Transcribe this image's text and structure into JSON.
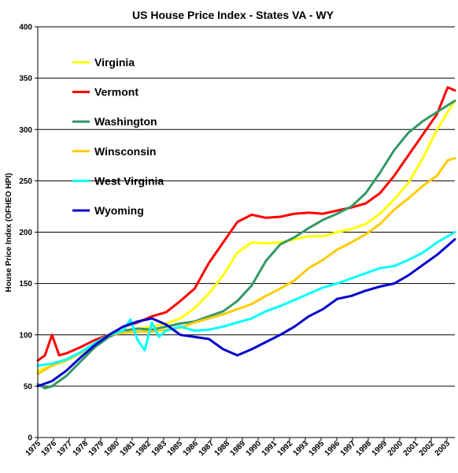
{
  "chart_data": {
    "type": "line",
    "title": "US House Price Index - States VA - WY",
    "ylabel": "House Price Index (OFHEO  HPI)",
    "xlabel": "",
    "ylim": [
      0,
      400
    ],
    "yticks": [
      0,
      50,
      100,
      150,
      200,
      250,
      300,
      350,
      400
    ],
    "xlim": [
      1975,
      2004.25
    ],
    "xtick_labels": [
      "1975",
      "1976",
      "1977",
      "1978",
      "1979",
      "1980",
      "1981",
      "1982",
      "1983",
      "1985",
      "1986",
      "1987",
      "1988",
      "1989",
      "1990",
      "1991",
      "1992",
      "1993",
      "1995",
      "1996",
      "1997",
      "1998",
      "1999",
      "2000",
      "2001",
      "2002",
      "2003"
    ],
    "grid": "horizontal",
    "legend_position": "top-left",
    "series": [
      {
        "name": "Virginia",
        "color": "#ffff00",
        "points": [
          [
            1975,
            65
          ],
          [
            1976,
            70
          ],
          [
            1977,
            75
          ],
          [
            1978,
            82
          ],
          [
            1979,
            92
          ],
          [
            1980,
            100
          ],
          [
            1981,
            104
          ],
          [
            1982,
            106
          ],
          [
            1983,
            108
          ],
          [
            1984,
            111
          ],
          [
            1985,
            116
          ],
          [
            1986,
            126
          ],
          [
            1987,
            140
          ],
          [
            1988,
            158
          ],
          [
            1989,
            180
          ],
          [
            1990,
            190
          ],
          [
            1991,
            189
          ],
          [
            1992,
            190
          ],
          [
            1993,
            193
          ],
          [
            1994,
            196
          ],
          [
            1995,
            196
          ],
          [
            1996,
            200
          ],
          [
            1997,
            203
          ],
          [
            1998,
            208
          ],
          [
            1999,
            218
          ],
          [
            2000,
            232
          ],
          [
            2001,
            248
          ],
          [
            2002,
            272
          ],
          [
            2003,
            300
          ],
          [
            2004.25,
            328
          ]
        ]
      },
      {
        "name": "Vermont",
        "color": "#ff0000",
        "points": [
          [
            1975,
            75
          ],
          [
            1975.5,
            80
          ],
          [
            1976,
            100
          ],
          [
            1976.5,
            80
          ],
          [
            1977,
            82
          ],
          [
            1978,
            88
          ],
          [
            1979,
            95
          ],
          [
            1980,
            100
          ],
          [
            1981,
            108
          ],
          [
            1982,
            112
          ],
          [
            1983,
            118
          ],
          [
            1984,
            122
          ],
          [
            1985,
            133
          ],
          [
            1986,
            145
          ],
          [
            1987,
            170
          ],
          [
            1988,
            190
          ],
          [
            1989,
            210
          ],
          [
            1990,
            217
          ],
          [
            1991,
            214
          ],
          [
            1992,
            215
          ],
          [
            1993,
            218
          ],
          [
            1994,
            219
          ],
          [
            1995,
            218
          ],
          [
            1996,
            221
          ],
          [
            1997,
            224
          ],
          [
            1998,
            228
          ],
          [
            1999,
            238
          ],
          [
            2000,
            255
          ],
          [
            2001,
            275
          ],
          [
            2002,
            295
          ],
          [
            2003,
            315
          ],
          [
            2003.75,
            341
          ],
          [
            2004.25,
            338
          ]
        ]
      },
      {
        "name": "Washington",
        "color": "#339966",
        "points": [
          [
            1975,
            52
          ],
          [
            1975.5,
            48
          ],
          [
            1976,
            50
          ],
          [
            1977,
            60
          ],
          [
            1978,
            74
          ],
          [
            1979,
            88
          ],
          [
            1980,
            98
          ],
          [
            1981,
            104
          ],
          [
            1982,
            106
          ],
          [
            1983,
            105
          ],
          [
            1984,
            108
          ],
          [
            1985,
            111
          ],
          [
            1986,
            113
          ],
          [
            1987,
            118
          ],
          [
            1988,
            123
          ],
          [
            1989,
            133
          ],
          [
            1990,
            148
          ],
          [
            1991,
            172
          ],
          [
            1992,
            188
          ],
          [
            1993,
            195
          ],
          [
            1994,
            204
          ],
          [
            1995,
            212
          ],
          [
            1996,
            218
          ],
          [
            1997,
            225
          ],
          [
            1998,
            238
          ],
          [
            1999,
            258
          ],
          [
            2000,
            280
          ],
          [
            2001,
            297
          ],
          [
            2002,
            308
          ],
          [
            2003,
            317
          ],
          [
            2004.25,
            328
          ]
        ]
      },
      {
        "name": "Winsconsin",
        "color": "#ffcc00",
        "points": [
          [
            1975,
            62
          ],
          [
            1976,
            70
          ],
          [
            1977,
            75
          ],
          [
            1978,
            82
          ],
          [
            1979,
            92
          ],
          [
            1980,
            100
          ],
          [
            1981,
            102
          ],
          [
            1982,
            103
          ],
          [
            1983,
            103
          ],
          [
            1984,
            105
          ],
          [
            1985,
            107
          ],
          [
            1986,
            112
          ],
          [
            1987,
            116
          ],
          [
            1988,
            120
          ],
          [
            1989,
            125
          ],
          [
            1990,
            130
          ],
          [
            1991,
            138
          ],
          [
            1992,
            145
          ],
          [
            1993,
            153
          ],
          [
            1994,
            165
          ],
          [
            1995,
            173
          ],
          [
            1996,
            183
          ],
          [
            1997,
            190
          ],
          [
            1998,
            198
          ],
          [
            1999,
            208
          ],
          [
            2000,
            222
          ],
          [
            2001,
            233
          ],
          [
            2002,
            245
          ],
          [
            2003,
            255
          ],
          [
            2003.75,
            270
          ],
          [
            2004.25,
            272
          ]
        ]
      },
      {
        "name": "West Virginia",
        "color": "#00ffff",
        "points": [
          [
            1975,
            70
          ],
          [
            1976,
            72
          ],
          [
            1977,
            76
          ],
          [
            1978,
            83
          ],
          [
            1979,
            92
          ],
          [
            1980,
            100
          ],
          [
            1981,
            104
          ],
          [
            1981.5,
            115
          ],
          [
            1982,
            95
          ],
          [
            1982.5,
            85
          ],
          [
            1983,
            112
          ],
          [
            1983.5,
            98
          ],
          [
            1984,
            104
          ],
          [
            1985,
            108
          ],
          [
            1986,
            104
          ],
          [
            1987,
            105
          ],
          [
            1988,
            108
          ],
          [
            1989,
            112
          ],
          [
            1990,
            116
          ],
          [
            1991,
            123
          ],
          [
            1992,
            128
          ],
          [
            1993,
            134
          ],
          [
            1994,
            140
          ],
          [
            1995,
            146
          ],
          [
            1996,
            150
          ],
          [
            1997,
            155
          ],
          [
            1998,
            160
          ],
          [
            1999,
            165
          ],
          [
            2000,
            167
          ],
          [
            2001,
            173
          ],
          [
            2002,
            180
          ],
          [
            2003,
            190
          ],
          [
            2004.25,
            200
          ]
        ]
      },
      {
        "name": "Wyoming",
        "color": "#0000cc",
        "points": [
          [
            1975,
            50
          ],
          [
            1976,
            55
          ],
          [
            1977,
            65
          ],
          [
            1978,
            78
          ],
          [
            1979,
            90
          ],
          [
            1980,
            100
          ],
          [
            1981,
            108
          ],
          [
            1982,
            113
          ],
          [
            1983,
            116
          ],
          [
            1984,
            110
          ],
          [
            1985,
            100
          ],
          [
            1986,
            98
          ],
          [
            1987,
            96
          ],
          [
            1988,
            86
          ],
          [
            1989,
            80
          ],
          [
            1990,
            86
          ],
          [
            1991,
            93
          ],
          [
            1992,
            100
          ],
          [
            1993,
            108
          ],
          [
            1994,
            118
          ],
          [
            1995,
            125
          ],
          [
            1996,
            135
          ],
          [
            1997,
            138
          ],
          [
            1998,
            143
          ],
          [
            1999,
            147
          ],
          [
            2000,
            150
          ],
          [
            2001,
            158
          ],
          [
            2002,
            168
          ],
          [
            2003,
            178
          ],
          [
            2004.25,
            193
          ]
        ]
      }
    ]
  }
}
